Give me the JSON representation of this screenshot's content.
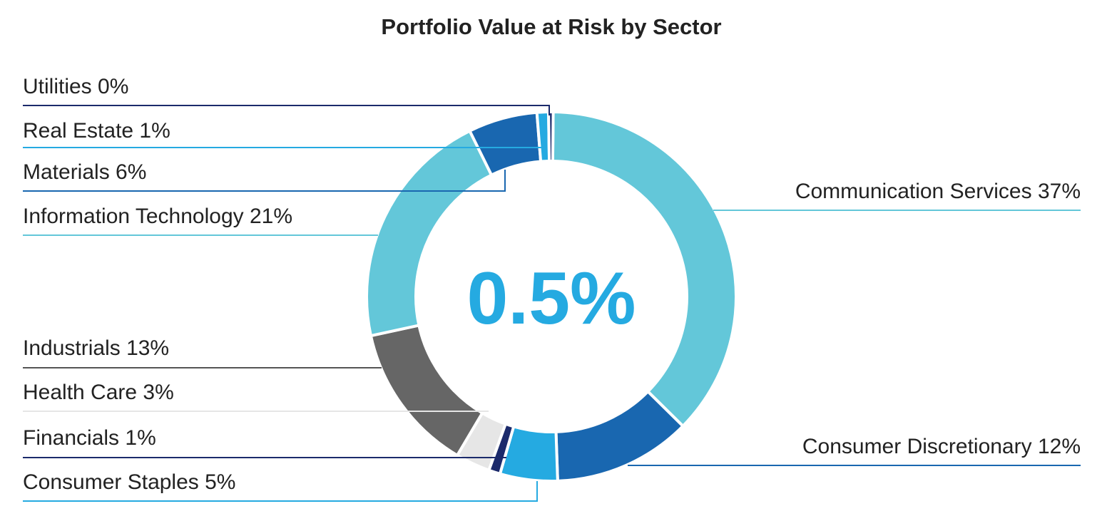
{
  "chart_data": {
    "type": "pie",
    "variant": "donut",
    "title": "Portfolio Value at Risk by Sector",
    "center_label": "0.5%",
    "unit": "%",
    "categories": [
      "Communication Services",
      "Consumer Discretionary",
      "Consumer Staples",
      "Financials",
      "Health Care",
      "Industrials",
      "Information Technology",
      "Materials",
      "Real Estate",
      "Utilities"
    ],
    "values": [
      37,
      12,
      5,
      1,
      3,
      13,
      21,
      6,
      1,
      0
    ],
    "labels": [
      "Communication Services 37%",
      "Consumer Discretionary 12%",
      "Consumer Staples 5%",
      "Financials 1%",
      "Health Care 3%",
      "Industrials 13%",
      "Information Technology 21%",
      "Materials 6%",
      "Real Estate 1%",
      "Utilities 0%"
    ],
    "colors": [
      "#63C7D9",
      "#1967B0",
      "#25AAE1",
      "#1B2A6B",
      "#E6E6E6",
      "#666666",
      "#63C7D9",
      "#1967B0",
      "#25AAE1",
      "#1B2A6B"
    ],
    "legend": "none",
    "label_placement": "leader-lines"
  }
}
